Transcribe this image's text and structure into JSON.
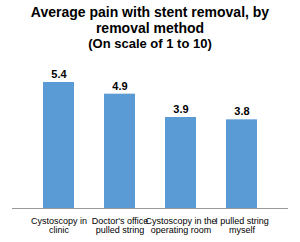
{
  "chart_data": {
    "type": "bar",
    "title": "Average pain with stent removal, by removal method",
    "subtitle": "(On scale of 1 to 10)",
    "categories": [
      "Cystoscopy in clinic",
      "Doctor's office pulled string",
      "Cystoscopy in the operating room",
      "I pulled string myself"
    ],
    "values": [
      5.4,
      4.9,
      3.9,
      3.8
    ],
    "color": "#5b9bd5",
    "ylim": [
      0,
      6
    ],
    "grid": false,
    "data_labels": true,
    "tick_labels": "x"
  }
}
